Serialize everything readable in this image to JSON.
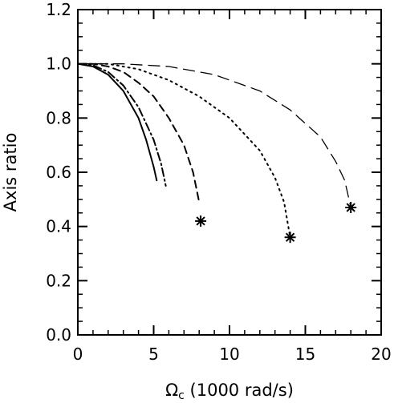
{
  "chart_data": {
    "type": "line",
    "xlabel_symbol": "Ω",
    "xlabel_subscript": "c",
    "xlabel_rest": " (1000 rad/s)",
    "ylabel": "Axis ratio",
    "xlim": [
      0,
      20
    ],
    "ylim": [
      0.0,
      1.2
    ],
    "xticks": [
      0,
      5,
      10,
      15,
      20
    ],
    "yticks": [
      0.0,
      0.2,
      0.4,
      0.6,
      0.8,
      1.0,
      1.2
    ],
    "xtick_labels": [
      "0",
      "5",
      "10",
      "15",
      "20"
    ],
    "ytick_labels": [
      "0.0",
      "0.2",
      "0.4",
      "0.6",
      "0.8",
      "1.0",
      "1.2"
    ],
    "grid": false,
    "series": [
      {
        "style": "solid",
        "x": [
          0,
          1,
          2,
          3,
          4,
          4.5,
          5,
          5.2
        ],
        "y": [
          1.0,
          0.99,
          0.96,
          0.9,
          0.8,
          0.72,
          0.62,
          0.57
        ],
        "endpoint_marker": false
      },
      {
        "style": "dashdot",
        "x": [
          0,
          1,
          2,
          3,
          4,
          5,
          5.5,
          5.8
        ],
        "y": [
          1.0,
          0.995,
          0.97,
          0.92,
          0.84,
          0.72,
          0.63,
          0.55
        ],
        "endpoint_marker": false
      },
      {
        "style": "dashed",
        "x": [
          0,
          1,
          2,
          3,
          4,
          5,
          6,
          7,
          7.6,
          8.0
        ],
        "y": [
          1.0,
          1.0,
          0.99,
          0.97,
          0.93,
          0.88,
          0.8,
          0.7,
          0.6,
          0.49
        ],
        "endpoint_marker": false
      },
      {
        "style": "short-dashed",
        "x": [
          8.1
        ],
        "y": [
          0.42
        ],
        "endpoint_marker": true
      },
      {
        "style": "dotted",
        "x": [
          0,
          2,
          4,
          6,
          8,
          10,
          12,
          13,
          13.6,
          14.0
        ],
        "y": [
          1.0,
          1.0,
          0.98,
          0.94,
          0.88,
          0.8,
          0.68,
          0.58,
          0.49,
          0.36
        ],
        "endpoint_marker": true
      },
      {
        "style": "long-dashed",
        "x": [
          0,
          3,
          6,
          9,
          12,
          14,
          16,
          17,
          17.6,
          18.0
        ],
        "y": [
          1.0,
          1.0,
          0.99,
          0.96,
          0.9,
          0.83,
          0.73,
          0.64,
          0.57,
          0.47
        ],
        "endpoint_marker": true
      }
    ]
  }
}
